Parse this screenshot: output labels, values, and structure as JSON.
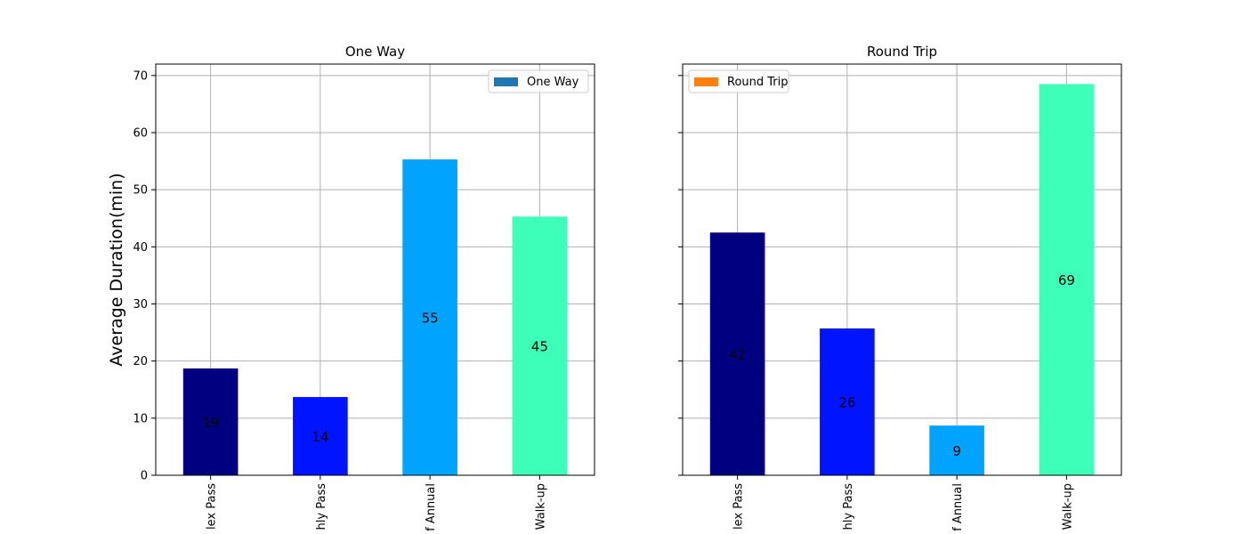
{
  "chart_data": [
    {
      "type": "bar",
      "title": "One Way",
      "xlabel": "",
      "ylabel": "Average Duration(min)",
      "categories": [
        "Flex Pass",
        "Monthly Pass",
        "Staff Annual",
        "Walk-up"
      ],
      "category_tick_labels": [
        "lex Pass",
        "hly Pass",
        "f Annual",
        "Walk-up"
      ],
      "values": [
        18.7,
        13.7,
        55.3,
        45.3
      ],
      "data_labels": [
        "19",
        "14",
        "55",
        "45"
      ],
      "bar_colors": [
        "#000080",
        "#0014ff",
        "#00a4ff",
        "#3dffb9"
      ],
      "ylim": [
        0,
        72
      ],
      "yticks": [
        0,
        10,
        20,
        30,
        40,
        50,
        60,
        70
      ],
      "grid": true,
      "legend": {
        "placement": "top-right",
        "label": "One Way",
        "color": "#1f77b4"
      }
    },
    {
      "type": "bar",
      "title": "Round Trip",
      "xlabel": "",
      "ylabel": "",
      "categories": [
        "Flex Pass",
        "Monthly Pass",
        "Staff Annual",
        "Walk-up"
      ],
      "category_tick_labels": [
        "lex Pass",
        "hly Pass",
        "f Annual",
        "Walk-up"
      ],
      "values": [
        42.5,
        25.7,
        8.7,
        68.5
      ],
      "data_labels": [
        "42",
        "26",
        "9",
        "69"
      ],
      "bar_colors": [
        "#000080",
        "#0014ff",
        "#00a4ff",
        "#3dffb9"
      ],
      "ylim": [
        0,
        72
      ],
      "yticks": [
        0,
        10,
        20,
        30,
        40,
        50,
        60,
        70
      ],
      "grid": true,
      "legend": {
        "placement": "top-left",
        "label": "Round Trip",
        "color": "#ff7f0e"
      }
    }
  ]
}
